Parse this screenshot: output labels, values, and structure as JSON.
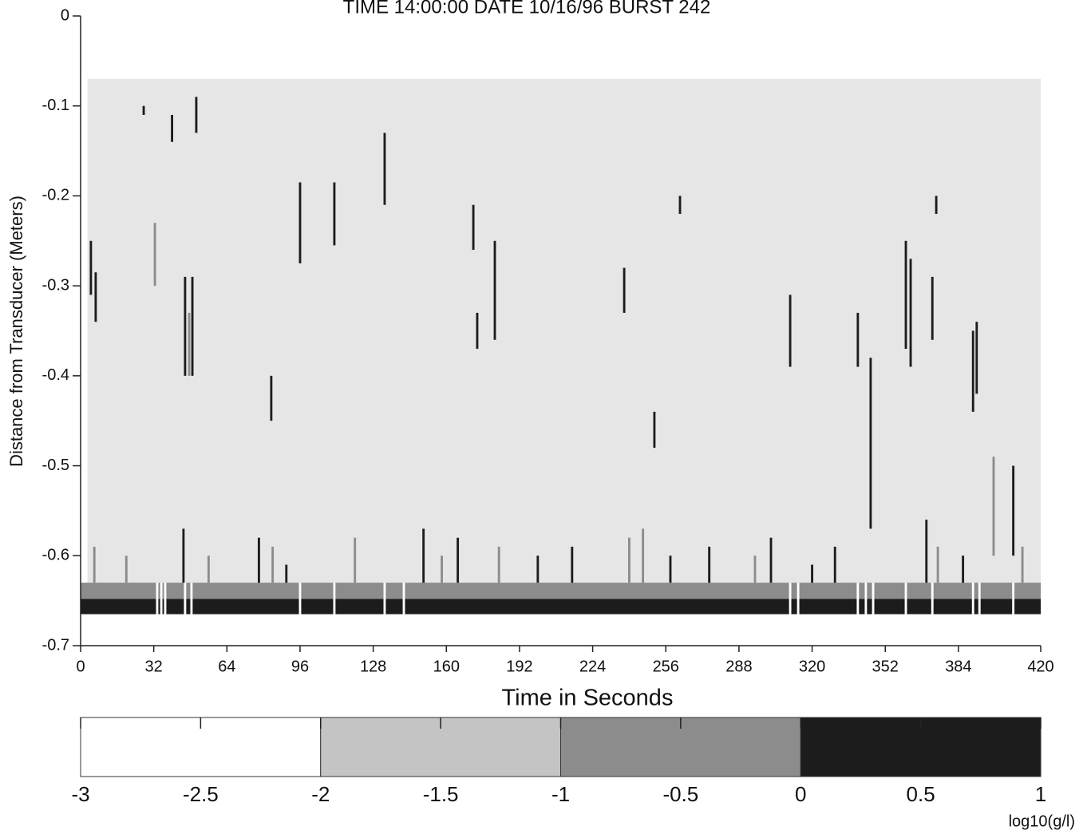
{
  "chart_data": {
    "type": "heatmap",
    "title": "TIME 14:00:00 DATE 10/16/96   BURST 242",
    "x_label": "Time in Seconds",
    "y_label": "Distance from Transducer (Meters)",
    "xlim": [
      0,
      420
    ],
    "ylim": [
      -0.7,
      0
    ],
    "xticks": [
      0,
      32,
      64,
      96,
      128,
      160,
      192,
      224,
      256,
      288,
      320,
      352,
      384,
      420
    ],
    "yticks": [
      0,
      -0.1,
      -0.2,
      -0.3,
      -0.4,
      -0.5,
      -0.6,
      -0.7
    ],
    "returns_region": {
      "t": [
        3,
        420
      ],
      "depth": [
        -0.07,
        -0.63
      ],
      "color": "#e6e6e6"
    },
    "layers": [
      {
        "top": -0.63,
        "bottom": -0.648,
        "value": -0.5
      },
      {
        "top": -0.648,
        "bottom": -0.665,
        "value": 0.5
      }
    ],
    "streaks": [
      {
        "t": 4.5,
        "top": -0.25,
        "bottom": -0.31,
        "value": 0.5
      },
      {
        "t": 6.6,
        "top": -0.285,
        "bottom": -0.34,
        "value": 0.5
      },
      {
        "t": 27.6,
        "top": -0.1,
        "bottom": -0.11,
        "value": 0.5
      },
      {
        "t": 32.5,
        "top": -0.23,
        "bottom": -0.3,
        "value": -0.3
      },
      {
        "t": 40,
        "top": -0.11,
        "bottom": -0.14,
        "value": 0.5
      },
      {
        "t": 50.6,
        "top": -0.09,
        "bottom": -0.13,
        "value": 0.5
      },
      {
        "t": 45.7,
        "top": -0.29,
        "bottom": -0.4,
        "value": 0.5
      },
      {
        "t": 47.5,
        "top": -0.33,
        "bottom": -0.4,
        "value": -0.3
      },
      {
        "t": 48.9,
        "top": -0.29,
        "bottom": -0.4,
        "value": 0.5
      },
      {
        "t": 96,
        "top": -0.185,
        "bottom": -0.275,
        "value": 0.5
      },
      {
        "t": 111,
        "top": -0.185,
        "bottom": -0.255,
        "value": 0.5
      },
      {
        "t": 133,
        "top": -0.13,
        "bottom": -0.21,
        "value": 0.5
      },
      {
        "t": 171.8,
        "top": -0.21,
        "bottom": -0.26,
        "value": 0.5
      },
      {
        "t": 181.2,
        "top": -0.25,
        "bottom": -0.36,
        "value": 0.5
      },
      {
        "t": 173.5,
        "top": -0.33,
        "bottom": -0.37,
        "value": 0.5
      },
      {
        "t": 83.4,
        "top": -0.4,
        "bottom": -0.45,
        "value": 0.5
      },
      {
        "t": 237.8,
        "top": -0.28,
        "bottom": -0.33,
        "value": 0.5
      },
      {
        "t": 251,
        "top": -0.44,
        "bottom": -0.48,
        "value": 0.5
      },
      {
        "t": 262.2,
        "top": -0.2,
        "bottom": -0.22,
        "value": 0.5
      },
      {
        "t": 310.4,
        "top": -0.31,
        "bottom": -0.39,
        "value": 0.5
      },
      {
        "t": 340,
        "top": -0.33,
        "bottom": -0.39,
        "value": 0.5
      },
      {
        "t": 345.6,
        "top": -0.38,
        "bottom": -0.57,
        "value": 0.5
      },
      {
        "t": 361,
        "top": -0.25,
        "bottom": -0.37,
        "value": 0.5
      },
      {
        "t": 363.1,
        "top": -0.27,
        "bottom": -0.39,
        "value": 0.5
      },
      {
        "t": 372.6,
        "top": -0.29,
        "bottom": -0.36,
        "value": 0.5
      },
      {
        "t": 374.3,
        "top": -0.2,
        "bottom": -0.22,
        "value": 0.5
      },
      {
        "t": 390.4,
        "top": -0.35,
        "bottom": -0.44,
        "value": 0.5
      },
      {
        "t": 392,
        "top": -0.34,
        "bottom": -0.42,
        "value": 0.5
      },
      {
        "t": 399.4,
        "top": -0.49,
        "bottom": -0.6,
        "value": -0.3
      },
      {
        "t": 408,
        "top": -0.5,
        "bottom": -0.6,
        "value": 0.5
      },
      {
        "t": 6,
        "top": -0.59,
        "bottom": -0.63,
        "value": -0.5
      },
      {
        "t": 20,
        "top": -0.6,
        "bottom": -0.63,
        "value": -0.5
      },
      {
        "t": 45,
        "top": -0.57,
        "bottom": -0.63,
        "value": 0.5
      },
      {
        "t": 56,
        "top": -0.6,
        "bottom": -0.63,
        "value": -0.5
      },
      {
        "t": 78,
        "top": -0.58,
        "bottom": -0.63,
        "value": 0.5
      },
      {
        "t": 84,
        "top": -0.59,
        "bottom": -0.63,
        "value": -0.5
      },
      {
        "t": 90,
        "top": -0.61,
        "bottom": -0.63,
        "value": 0.5
      },
      {
        "t": 120,
        "top": -0.58,
        "bottom": -0.63,
        "value": -0.5
      },
      {
        "t": 150,
        "top": -0.57,
        "bottom": -0.63,
        "value": 0.5
      },
      {
        "t": 158,
        "top": -0.6,
        "bottom": -0.63,
        "value": -0.5
      },
      {
        "t": 165,
        "top": -0.58,
        "bottom": -0.63,
        "value": 0.5
      },
      {
        "t": 183,
        "top": -0.59,
        "bottom": -0.63,
        "value": -0.5
      },
      {
        "t": 200,
        "top": -0.6,
        "bottom": -0.63,
        "value": 0.5
      },
      {
        "t": 215,
        "top": -0.59,
        "bottom": -0.63,
        "value": 0.5
      },
      {
        "t": 240,
        "top": -0.58,
        "bottom": -0.63,
        "value": -0.5
      },
      {
        "t": 246,
        "top": -0.57,
        "bottom": -0.63,
        "value": -0.5
      },
      {
        "t": 258,
        "top": -0.6,
        "bottom": -0.63,
        "value": 0.5
      },
      {
        "t": 275,
        "top": -0.59,
        "bottom": -0.63,
        "value": 0.5
      },
      {
        "t": 295,
        "top": -0.6,
        "bottom": -0.63,
        "value": -0.5
      },
      {
        "t": 302,
        "top": -0.58,
        "bottom": -0.63,
        "value": 0.5
      },
      {
        "t": 320,
        "top": -0.61,
        "bottom": -0.63,
        "value": 0.5
      },
      {
        "t": 330,
        "top": -0.59,
        "bottom": -0.63,
        "value": 0.5
      },
      {
        "t": 370,
        "top": -0.56,
        "bottom": -0.63,
        "value": 0.5
      },
      {
        "t": 375,
        "top": -0.59,
        "bottom": -0.63,
        "value": -0.5
      },
      {
        "t": 386,
        "top": -0.6,
        "bottom": -0.63,
        "value": 0.5
      },
      {
        "t": 412,
        "top": -0.59,
        "bottom": -0.63,
        "value": -0.5
      },
      {
        "t": 33.5,
        "top": -0.63,
        "bottom": -0.665,
        "value": -2.5
      },
      {
        "t": 35.3,
        "top": -0.63,
        "bottom": -0.665,
        "value": -2.5
      },
      {
        "t": 37,
        "top": -0.63,
        "bottom": -0.665,
        "value": -2.5
      },
      {
        "t": 45.7,
        "top": -0.63,
        "bottom": -0.665,
        "value": -2.5
      },
      {
        "t": 48.5,
        "top": -0.63,
        "bottom": -0.665,
        "value": -2.5
      },
      {
        "t": 96,
        "top": -0.63,
        "bottom": -0.665,
        "value": -2.5
      },
      {
        "t": 111,
        "top": -0.63,
        "bottom": -0.665,
        "value": -2.5
      },
      {
        "t": 133,
        "top": -0.63,
        "bottom": -0.665,
        "value": -2.5
      },
      {
        "t": 141.4,
        "top": -0.63,
        "bottom": -0.665,
        "value": -2.5
      },
      {
        "t": 310.4,
        "top": -0.63,
        "bottom": -0.665,
        "value": -2.5
      },
      {
        "t": 313.9,
        "top": -0.63,
        "bottom": -0.665,
        "value": -2.5
      },
      {
        "t": 340,
        "top": -0.63,
        "bottom": -0.665,
        "value": -2.5
      },
      {
        "t": 343.5,
        "top": -0.63,
        "bottom": -0.665,
        "value": -2.5
      },
      {
        "t": 346.7,
        "top": -0.63,
        "bottom": -0.665,
        "value": -2.5
      },
      {
        "t": 361,
        "top": -0.63,
        "bottom": -0.665,
        "value": -2.5
      },
      {
        "t": 372.6,
        "top": -0.63,
        "bottom": -0.665,
        "value": -2.5
      },
      {
        "t": 390.4,
        "top": -0.63,
        "bottom": -0.665,
        "value": -2.5
      },
      {
        "t": 393.2,
        "top": -0.63,
        "bottom": -0.665,
        "value": -2.5
      },
      {
        "t": 408,
        "top": -0.63,
        "bottom": -0.665,
        "value": -2.5
      }
    ],
    "colorbar": {
      "label": "log10(g/l)",
      "lim": [
        -3,
        1
      ],
      "ticks": [
        -3,
        -2.5,
        -2,
        -1.5,
        -1,
        -0.5,
        0,
        0.5,
        1
      ],
      "bands": [
        {
          "from": -3,
          "to": -2,
          "color": "#ffffff"
        },
        {
          "from": -2,
          "to": -1,
          "color": "#c4c4c4"
        },
        {
          "from": -1,
          "to": 0,
          "color": "#8c8c8c"
        },
        {
          "from": 0,
          "to": 1,
          "color": "#1c1c1c"
        }
      ]
    }
  }
}
